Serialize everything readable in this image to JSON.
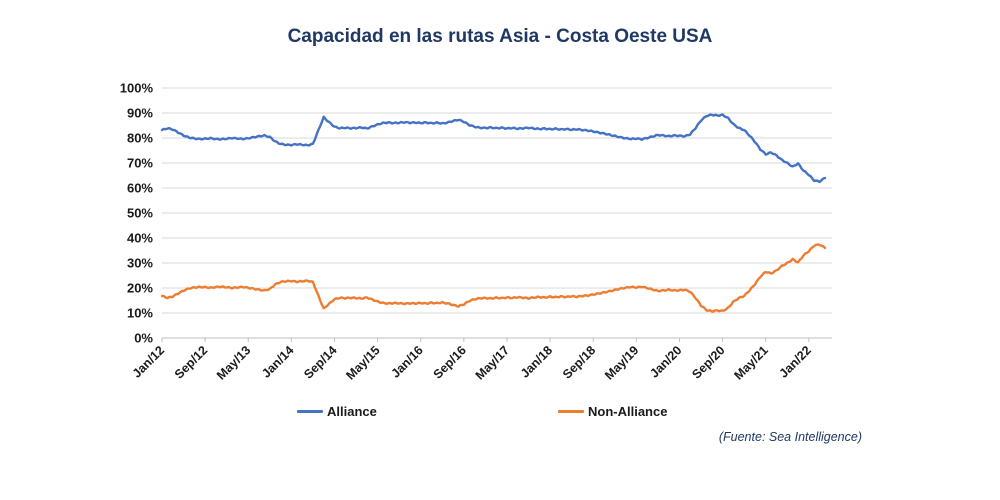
{
  "title": "Capacidad en las rutas Asia - Costa Oeste USA",
  "source_note": "(Fuente: Sea Intelligence)",
  "colors": {
    "alliance": "#4472C4",
    "non_alliance": "#ED7D31",
    "title_text": "#1F3864",
    "axis_text": "#1a1a1a",
    "gridline": "#d9d9d9",
    "axis_line": "#bfbfbf"
  },
  "legend": {
    "items": [
      {
        "label": "Alliance",
        "color": "#4472C4"
      },
      {
        "label": "Non-Alliance",
        "color": "#ED7D31"
      }
    ],
    "position": "bottom"
  },
  "chart_data": {
    "type": "line",
    "title": "Capacidad en las rutas Asia - Costa Oeste USA",
    "xlabel": "",
    "ylabel": "",
    "ylim": [
      0,
      100
    ],
    "grid": "horizontal",
    "legend_position": "bottom",
    "x_frequency": "monthly",
    "x_start": "Jan/12",
    "x_end": "Apr/22",
    "x_tick_labels": [
      "Jan/12",
      "Sep/12",
      "May/13",
      "Jan/14",
      "Sep/14",
      "May/15",
      "Jan/16",
      "Sep/16",
      "May/17",
      "Jan/18",
      "Sep/18",
      "May/19",
      "Jan/20",
      "Sep/20",
      "May/21",
      "Jan/22"
    ],
    "y_tick_labels": [
      "0%",
      "10%",
      "20%",
      "30%",
      "40%",
      "50%",
      "60%",
      "70%",
      "80%",
      "90%",
      "100%"
    ],
    "series": [
      {
        "name": "Alliance",
        "color": "#4472C4",
        "unit": "%",
        "values": [
          83.2,
          83.9,
          83.4,
          82.2,
          81.0,
          80.2,
          79.8,
          79.6,
          79.7,
          79.9,
          79.6,
          79.5,
          79.7,
          80.0,
          79.8,
          79.6,
          79.9,
          80.3,
          80.7,
          81.0,
          80.4,
          78.6,
          77.6,
          77.3,
          77.2,
          77.5,
          77.3,
          77.1,
          77.6,
          83.0,
          88.3,
          86.3,
          84.5,
          83.9,
          84.1,
          83.9,
          84.0,
          84.2,
          83.8,
          84.6,
          85.4,
          86.0,
          86.2,
          86.0,
          86.1,
          86.3,
          86.1,
          86.2,
          86.0,
          86.2,
          85.9,
          86.1,
          85.8,
          86.2,
          86.8,
          87.3,
          86.5,
          85.2,
          84.5,
          84.1,
          84.0,
          84.2,
          83.9,
          84.1,
          83.8,
          84.0,
          83.7,
          83.9,
          84.1,
          83.8,
          83.6,
          83.8,
          83.5,
          83.7,
          83.4,
          83.6,
          83.3,
          83.5,
          83.2,
          83.0,
          82.6,
          82.2,
          81.8,
          81.3,
          80.8,
          80.3,
          79.9,
          79.6,
          79.8,
          79.5,
          80.0,
          80.6,
          81.2,
          81.0,
          80.7,
          81.0,
          80.9,
          80.7,
          81.5,
          84.0,
          87.0,
          88.8,
          89.3,
          89.0,
          89.2,
          88.0,
          85.5,
          84.0,
          83.2,
          81.0,
          78.5,
          75.5,
          73.5,
          74.2,
          73.0,
          71.2,
          70.0,
          68.5,
          69.8,
          67.0,
          65.3,
          63.0,
          62.6,
          64.0
        ]
      },
      {
        "name": "Non-Alliance",
        "color": "#ED7D31",
        "unit": "%",
        "values": [
          16.8,
          16.1,
          16.6,
          17.8,
          19.0,
          19.8,
          20.2,
          20.4,
          20.3,
          20.1,
          20.4,
          20.5,
          20.3,
          20.0,
          20.2,
          20.4,
          20.1,
          19.7,
          19.3,
          19.0,
          19.6,
          21.4,
          22.4,
          22.7,
          22.8,
          22.5,
          22.7,
          22.9,
          22.4,
          17.0,
          11.7,
          13.7,
          15.5,
          16.1,
          15.9,
          16.1,
          16.0,
          15.8,
          16.2,
          15.4,
          14.6,
          14.0,
          13.8,
          14.0,
          13.9,
          13.7,
          13.9,
          13.8,
          14.0,
          13.8,
          14.1,
          13.9,
          14.2,
          13.8,
          13.2,
          12.7,
          13.5,
          14.8,
          15.5,
          15.9,
          16.0,
          15.8,
          16.1,
          15.9,
          16.2,
          16.0,
          16.3,
          16.1,
          15.9,
          16.2,
          16.4,
          16.2,
          16.5,
          16.3,
          16.6,
          16.4,
          16.7,
          16.5,
          16.8,
          17.0,
          17.4,
          17.8,
          18.2,
          18.7,
          19.2,
          19.7,
          20.1,
          20.4,
          20.2,
          20.5,
          20.0,
          19.4,
          18.8,
          19.0,
          19.3,
          19.0,
          19.1,
          19.3,
          18.5,
          16.0,
          13.0,
          11.2,
          10.7,
          11.0,
          10.8,
          12.0,
          14.5,
          16.0,
          16.8,
          19.0,
          21.5,
          24.5,
          26.5,
          25.8,
          27.0,
          28.8,
          30.0,
          31.5,
          30.2,
          33.0,
          34.7,
          37.0,
          37.4,
          36.0
        ]
      }
    ]
  }
}
